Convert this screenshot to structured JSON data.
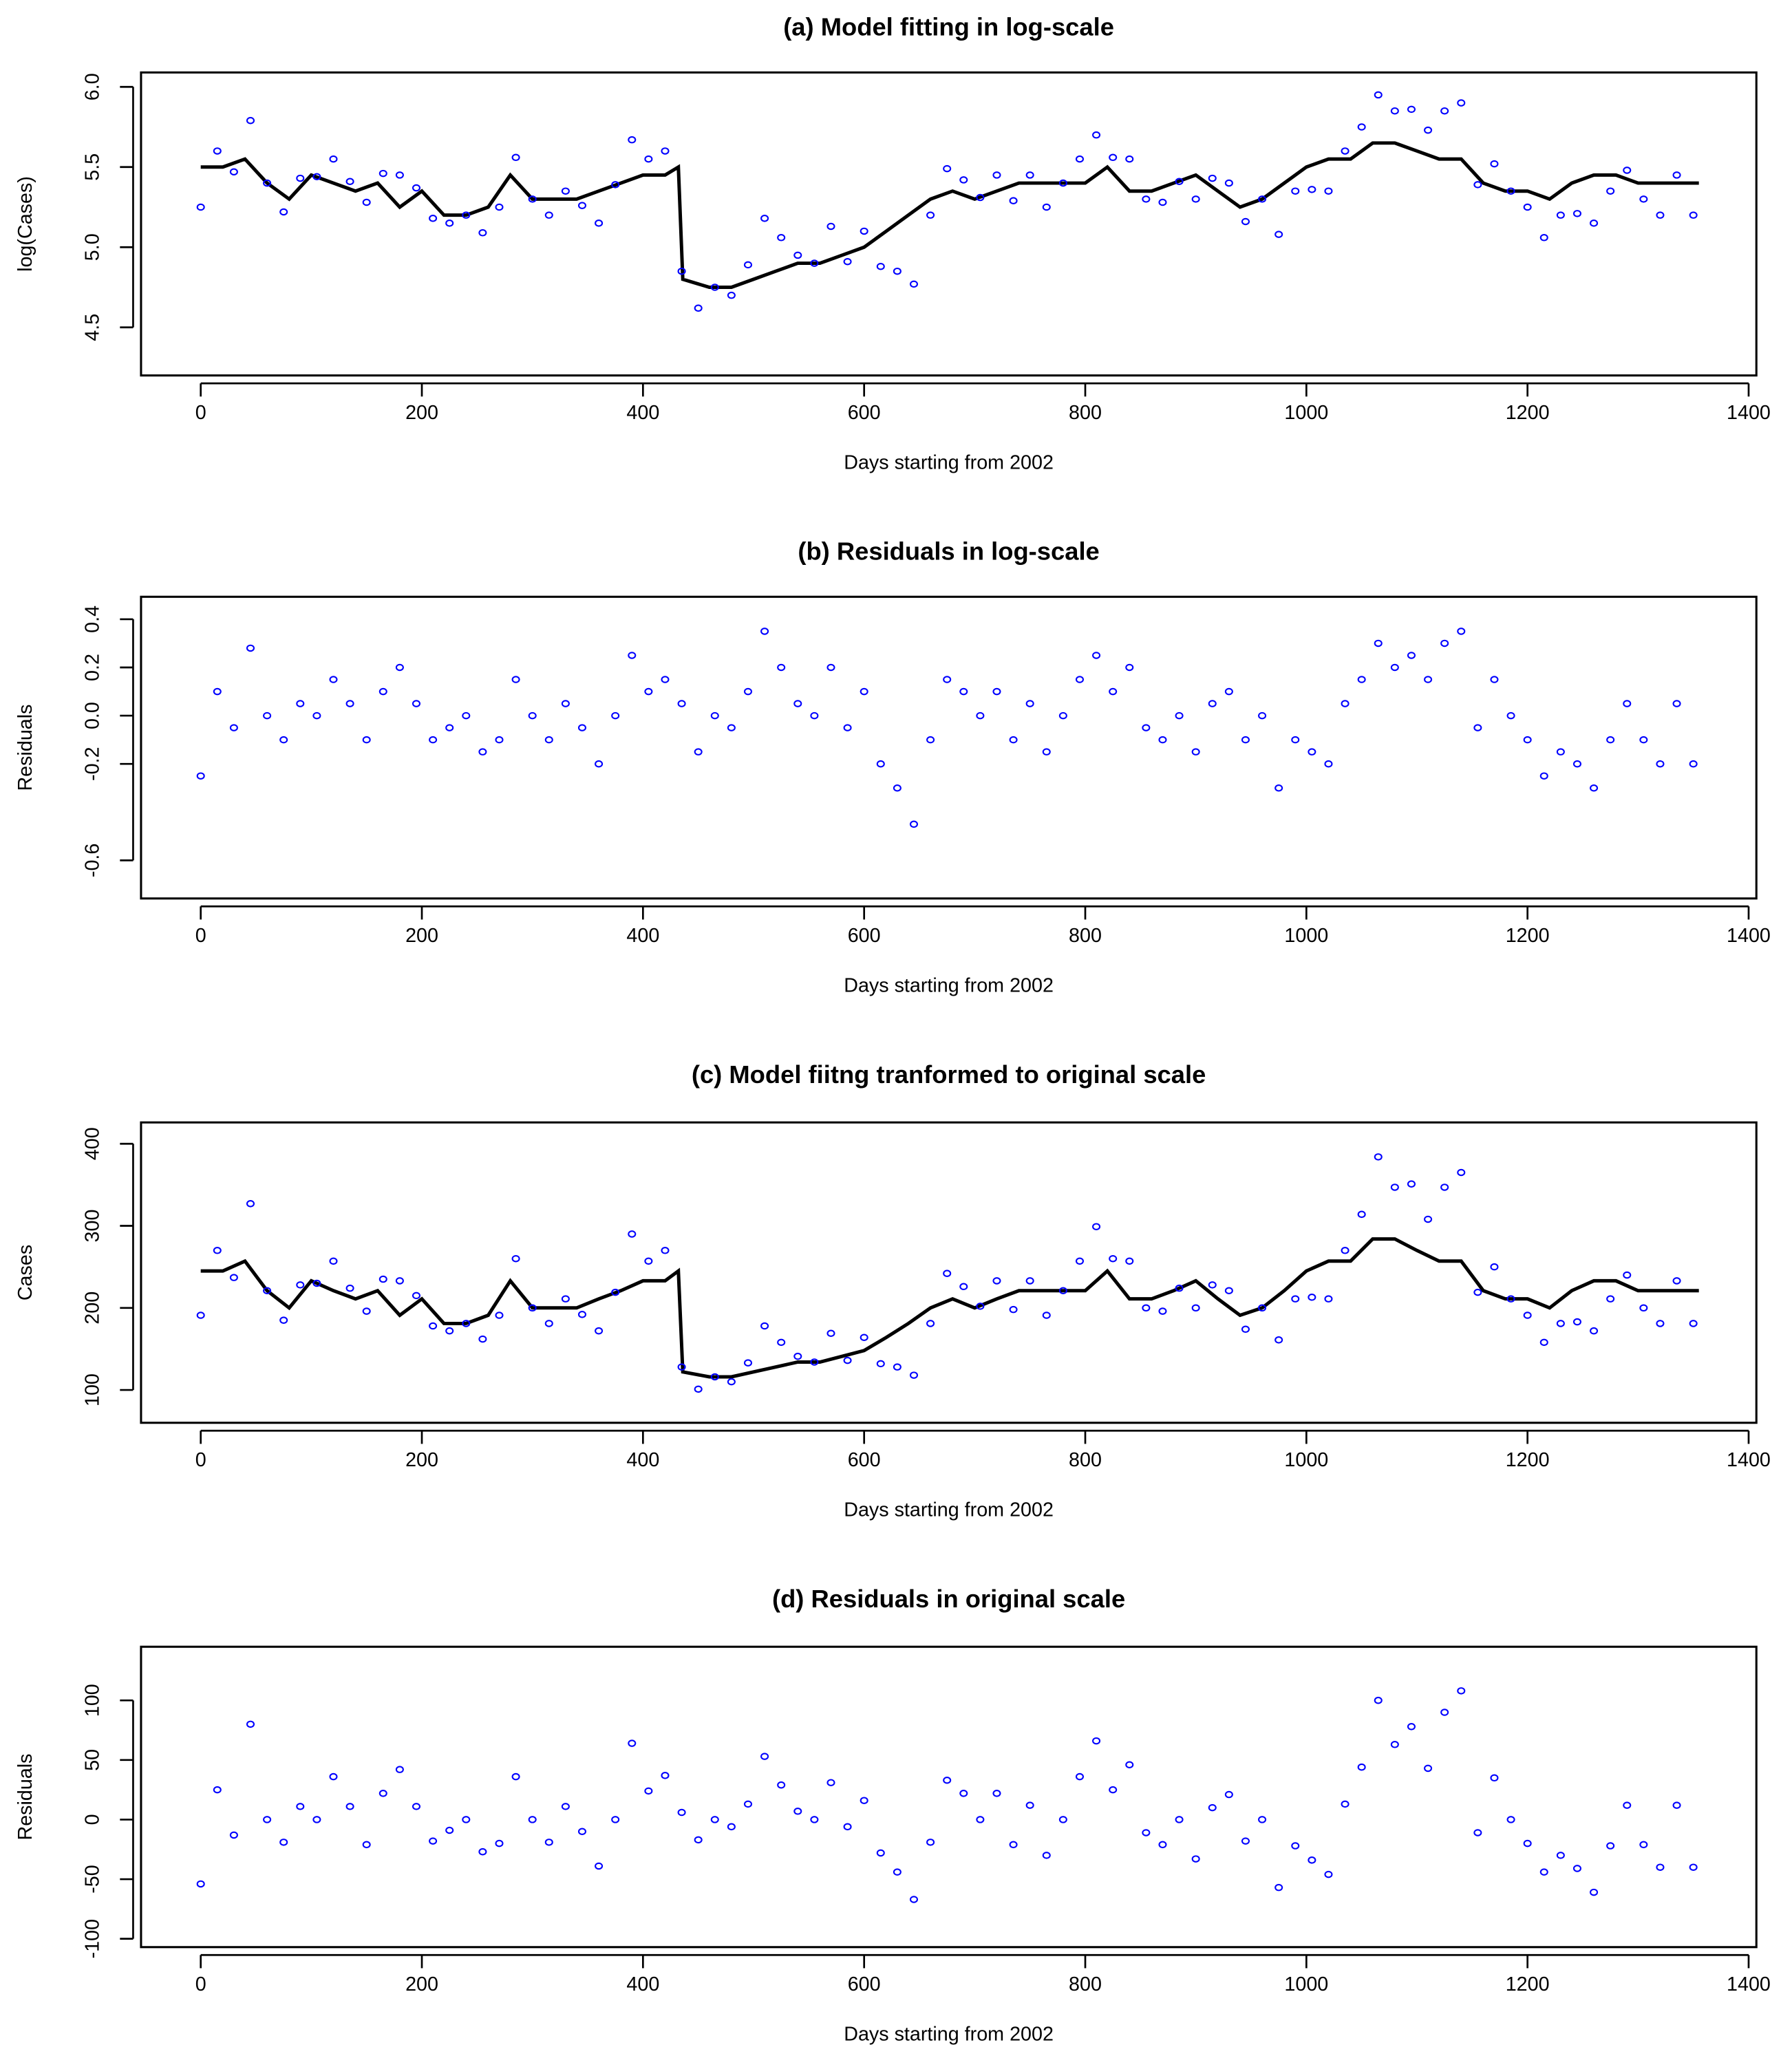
{
  "chart_data": [
    {
      "type": "scatter+line",
      "title": "(a) Model fitting in log-scale",
      "xlabel": "Days starting from 2002",
      "ylabel": "log(Cases)",
      "xlim": [
        -54,
        1407
      ],
      "ylim": [
        4.2,
        6.09
      ],
      "xticks": [
        0,
        200,
        400,
        600,
        800,
        1000,
        1200,
        1400
      ],
      "xtick_labels": [
        "0",
        "200",
        "400",
        "600",
        "800",
        "1000",
        "1200",
        "1400"
      ],
      "yticks": [
        4.5,
        5.0,
        5.5,
        6.0
      ],
      "ytick_labels": [
        "4.5",
        "5.0",
        "5.5",
        "6.0"
      ],
      "grid": false,
      "colors": {
        "points": "#0000ff",
        "line": "#000000"
      },
      "x": [
        0,
        15,
        30,
        45,
        60,
        75,
        90,
        105,
        120,
        135,
        150,
        165,
        180,
        195,
        210,
        225,
        240,
        255,
        270,
        285,
        300,
        315,
        330,
        345,
        360,
        375,
        390,
        405,
        420,
        435,
        450,
        465,
        480,
        495,
        510,
        525,
        540,
        555,
        570,
        585,
        600,
        615,
        630,
        645,
        660,
        675,
        690,
        705,
        720,
        735,
        750,
        765,
        780,
        795,
        810,
        825,
        840,
        855,
        870,
        885,
        900,
        915,
        930,
        945,
        960,
        975,
        990,
        1005,
        1020,
        1035,
        1050,
        1065,
        1080,
        1095,
        1110,
        1125,
        1140,
        1155,
        1170,
        1185,
        1200,
        1215,
        1230,
        1245,
        1260,
        1275,
        1290,
        1305,
        1320,
        1335,
        1350
      ],
      "observed": [
        5.25,
        5.6,
        5.47,
        5.79,
        5.4,
        5.22,
        5.43,
        5.44,
        5.55,
        5.41,
        5.28,
        5.46,
        5.45,
        5.37,
        5.18,
        5.15,
        5.2,
        5.09,
        5.25,
        5.56,
        5.3,
        5.2,
        5.35,
        5.26,
        5.15,
        5.39,
        5.67,
        5.55,
        5.6,
        4.85,
        4.62,
        4.75,
        4.7,
        4.89,
        5.18,
        5.06,
        4.95,
        4.9,
        5.13,
        4.91,
        5.1,
        4.88,
        4.85,
        4.77,
        5.2,
        5.49,
        5.42,
        5.31,
        5.45,
        5.29,
        5.45,
        5.25,
        5.4,
        5.55,
        5.7,
        5.56,
        5.55,
        5.3,
        5.28,
        5.41,
        5.3,
        5.43,
        5.4,
        5.16,
        5.3,
        5.08,
        5.35,
        5.36,
        5.35,
        5.6,
        5.75,
        5.95,
        5.85,
        5.86,
        5.73,
        5.85,
        5.9,
        5.39,
        5.52,
        5.35,
        5.25,
        5.06,
        5.2,
        5.21,
        5.15,
        5.35,
        5.48,
        5.3,
        5.2,
        5.45,
        5.2
      ],
      "fitted_x": [
        0,
        20,
        40,
        60,
        80,
        100,
        120,
        140,
        160,
        180,
        200,
        220,
        240,
        260,
        280,
        300,
        320,
        340,
        360,
        380,
        400,
        420,
        432,
        436,
        460,
        480,
        500,
        520,
        540,
        560,
        580,
        600,
        620,
        640,
        660,
        680,
        700,
        720,
        740,
        760,
        780,
        800,
        820,
        840,
        860,
        880,
        900,
        920,
        940,
        960,
        980,
        1000,
        1020,
        1040,
        1060,
        1080,
        1100,
        1120,
        1140,
        1160,
        1180,
        1200,
        1220,
        1240,
        1260,
        1280,
        1300,
        1320,
        1340,
        1355
      ],
      "fitted": [
        5.5,
        5.5,
        5.55,
        5.4,
        5.3,
        5.45,
        5.4,
        5.35,
        5.4,
        5.25,
        5.35,
        5.2,
        5.2,
        5.25,
        5.45,
        5.3,
        5.3,
        5.3,
        5.35,
        5.4,
        5.45,
        5.45,
        5.5,
        4.8,
        4.75,
        4.75,
        4.8,
        4.85,
        4.9,
        4.9,
        4.95,
        5.0,
        5.1,
        5.2,
        5.3,
        5.35,
        5.3,
        5.35,
        5.4,
        5.4,
        5.4,
        5.4,
        5.5,
        5.35,
        5.35,
        5.4,
        5.45,
        5.35,
        5.25,
        5.3,
        5.4,
        5.5,
        5.55,
        5.55,
        5.65,
        5.65,
        5.6,
        5.55,
        5.55,
        5.4,
        5.35,
        5.35,
        5.3,
        5.4,
        5.45,
        5.45,
        5.4,
        5.4,
        5.4,
        5.4
      ]
    },
    {
      "type": "scatter",
      "title": "(b) Residuals in log-scale",
      "xlabel": "Days starting from 2002",
      "ylabel": "Residuals",
      "xlim": [
        -54,
        1407
      ],
      "ylim": [
        -0.758,
        0.493
      ],
      "xticks": [
        0,
        200,
        400,
        600,
        800,
        1000,
        1200,
        1400
      ],
      "xtick_labels": [
        "0",
        "200",
        "400",
        "600",
        "800",
        "1000",
        "1200",
        "1400"
      ],
      "yticks": [
        -0.6,
        -0.2,
        0.0,
        0.2,
        0.4
      ],
      "ytick_labels": [
        "-0.6",
        "-0.2",
        "0.0",
        "0.2",
        "0.4"
      ],
      "grid": false,
      "colors": {
        "points": "#0000ff"
      },
      "x": [
        0,
        15,
        30,
        45,
        60,
        75,
        90,
        105,
        120,
        135,
        150,
        165,
        180,
        195,
        210,
        225,
        240,
        255,
        270,
        285,
        300,
        315,
        330,
        345,
        360,
        375,
        390,
        405,
        420,
        435,
        450,
        465,
        480,
        495,
        510,
        525,
        540,
        555,
        570,
        585,
        600,
        615,
        630,
        645,
        660,
        675,
        690,
        705,
        720,
        735,
        750,
        765,
        780,
        795,
        810,
        825,
        840,
        855,
        870,
        885,
        900,
        915,
        930,
        945,
        960,
        975,
        990,
        1005,
        1020,
        1035,
        1050,
        1065,
        1080,
        1095,
        1110,
        1125,
        1140,
        1155,
        1170,
        1185,
        1200,
        1215,
        1230,
        1245,
        1260,
        1275,
        1290,
        1305,
        1320,
        1335,
        1350
      ],
      "residuals": [
        -0.25,
        0.1,
        -0.05,
        0.28,
        0.0,
        -0.1,
        0.05,
        0.0,
        0.15,
        0.05,
        -0.1,
        0.1,
        0.2,
        0.05,
        -0.1,
        -0.05,
        0.0,
        -0.15,
        -0.1,
        0.15,
        0.0,
        -0.1,
        0.05,
        -0.05,
        -0.2,
        0.0,
        0.25,
        0.1,
        0.15,
        0.05,
        -0.15,
        0.0,
        -0.05,
        0.1,
        0.35,
        0.2,
        0.05,
        0.0,
        0.2,
        -0.05,
        0.1,
        -0.2,
        -0.3,
        -0.45,
        -0.1,
        0.15,
        0.1,
        0.0,
        0.1,
        -0.1,
        0.05,
        -0.15,
        0.0,
        0.15,
        0.25,
        0.1,
        0.2,
        -0.05,
        -0.1,
        0.0,
        -0.15,
        0.05,
        0.1,
        -0.1,
        0.0,
        -0.3,
        -0.1,
        -0.15,
        -0.2,
        0.05,
        0.15,
        0.3,
        0.2,
        0.25,
        0.15,
        0.3,
        0.35,
        -0.05,
        0.15,
        0.0,
        -0.1,
        -0.25,
        -0.15,
        -0.2,
        -0.3,
        -0.1,
        0.05,
        -0.1,
        -0.2,
        0.05,
        -0.2
      ]
    },
    {
      "type": "scatter+line",
      "title": "(c) Model fiitng tranformed to original scale",
      "xlabel": "Days starting from 2002",
      "ylabel": "Cases",
      "xlim": [
        -54,
        1407
      ],
      "ylim": [
        60,
        426
      ],
      "xticks": [
        0,
        200,
        400,
        600,
        800,
        1000,
        1200,
        1400
      ],
      "xtick_labels": [
        "0",
        "200",
        "400",
        "600",
        "800",
        "1000",
        "1200",
        "1400"
      ],
      "yticks": [
        100,
        200,
        300,
        400
      ],
      "ytick_labels": [
        "100",
        "200",
        "300",
        "400"
      ],
      "grid": false,
      "colors": {
        "points": "#0000ff",
        "line": "#000000"
      },
      "x": [
        0,
        15,
        30,
        45,
        60,
        75,
        90,
        105,
        120,
        135,
        150,
        165,
        180,
        195,
        210,
        225,
        240,
        255,
        270,
        285,
        300,
        315,
        330,
        345,
        360,
        375,
        390,
        405,
        420,
        435,
        450,
        465,
        480,
        495,
        510,
        525,
        540,
        555,
        570,
        585,
        600,
        615,
        630,
        645,
        660,
        675,
        690,
        705,
        720,
        735,
        750,
        765,
        780,
        795,
        810,
        825,
        840,
        855,
        870,
        885,
        900,
        915,
        930,
        945,
        960,
        975,
        990,
        1005,
        1020,
        1035,
        1050,
        1065,
        1080,
        1095,
        1110,
        1125,
        1140,
        1155,
        1170,
        1185,
        1200,
        1215,
        1230,
        1245,
        1260,
        1275,
        1290,
        1305,
        1320,
        1335,
        1350
      ],
      "observed": [
        191,
        270,
        237,
        327,
        221,
        185,
        228,
        230,
        257,
        224,
        196,
        235,
        233,
        215,
        178,
        172,
        181,
        162,
        191,
        260,
        200,
        181,
        211,
        192,
        172,
        219,
        290,
        257,
        270,
        128,
        101,
        116,
        110,
        133,
        178,
        158,
        141,
        134,
        169,
        136,
        164,
        132,
        128,
        118,
        181,
        242,
        226,
        202,
        233,
        198,
        233,
        191,
        221,
        257,
        299,
        260,
        257,
        200,
        196,
        224,
        200,
        228,
        221,
        174,
        200,
        161,
        211,
        213,
        211,
        270,
        314,
        384,
        347,
        351,
        308,
        347,
        365,
        219,
        250,
        211,
        191,
        158,
        181,
        183,
        172,
        211,
        240,
        200,
        181,
        233,
        181
      ],
      "fitted_x": [
        0,
        20,
        40,
        60,
        80,
        100,
        120,
        140,
        160,
        180,
        200,
        220,
        240,
        260,
        280,
        300,
        320,
        340,
        360,
        380,
        400,
        420,
        432,
        436,
        460,
        480,
        500,
        520,
        540,
        560,
        580,
        600,
        620,
        640,
        660,
        680,
        700,
        720,
        740,
        760,
        780,
        800,
        820,
        840,
        860,
        880,
        900,
        920,
        940,
        960,
        980,
        1000,
        1020,
        1040,
        1060,
        1080,
        1100,
        1120,
        1140,
        1160,
        1180,
        1200,
        1220,
        1240,
        1260,
        1280,
        1300,
        1320,
        1340,
        1355
      ],
      "fitted": [
        245,
        245,
        257,
        221,
        200,
        233,
        221,
        211,
        221,
        191,
        211,
        181,
        181,
        191,
        233,
        200,
        200,
        200,
        211,
        221,
        233,
        233,
        245,
        122,
        116,
        116,
        122,
        128,
        134,
        134,
        141,
        148,
        164,
        181,
        200,
        211,
        200,
        211,
        221,
        221,
        221,
        221,
        245,
        211,
        211,
        221,
        233,
        211,
        191,
        200,
        221,
        245,
        257,
        257,
        284,
        284,
        270,
        257,
        257,
        221,
        211,
        211,
        200,
        221,
        233,
        233,
        221,
        221,
        221,
        221
      ]
    },
    {
      "type": "scatter",
      "title": "(d) Residuals in original scale",
      "xlabel": "Days starting from 2002",
      "ylabel": "Residuals",
      "xlim": [
        -54,
        1407
      ],
      "ylim": [
        -107,
        145
      ],
      "xticks": [
        0,
        200,
        400,
        600,
        800,
        1000,
        1200,
        1400
      ],
      "xtick_labels": [
        "0",
        "200",
        "400",
        "600",
        "800",
        "1000",
        "1200",
        "1400"
      ],
      "yticks": [
        -100,
        -50,
        0,
        50,
        100
      ],
      "ytick_labels": [
        "-100",
        "-50",
        "0",
        "50",
        "100"
      ],
      "grid": false,
      "colors": {
        "points": "#0000ff"
      },
      "x": [
        0,
        15,
        30,
        45,
        60,
        75,
        90,
        105,
        120,
        135,
        150,
        165,
        180,
        195,
        210,
        225,
        240,
        255,
        270,
        285,
        300,
        315,
        330,
        345,
        360,
        375,
        390,
        405,
        420,
        435,
        450,
        465,
        480,
        495,
        510,
        525,
        540,
        555,
        570,
        585,
        600,
        615,
        630,
        645,
        660,
        675,
        690,
        705,
        720,
        735,
        750,
        765,
        780,
        795,
        810,
        825,
        840,
        855,
        870,
        885,
        900,
        915,
        930,
        945,
        960,
        975,
        990,
        1005,
        1020,
        1035,
        1050,
        1065,
        1080,
        1095,
        1110,
        1125,
        1140,
        1155,
        1170,
        1185,
        1200,
        1215,
        1230,
        1245,
        1260,
        1275,
        1290,
        1305,
        1320,
        1335,
        1350
      ],
      "residuals": [
        -54,
        25,
        -13,
        80,
        0,
        -19,
        11,
        0,
        36,
        11,
        -21,
        22,
        42,
        11,
        -18,
        -9,
        0,
        -27,
        -20,
        36,
        0,
        -19,
        11,
        -10,
        -39,
        0,
        64,
        24,
        37,
        6,
        -17,
        0,
        -6,
        13,
        53,
        29,
        7,
        0,
        31,
        -6,
        16,
        -28,
        -44,
        -67,
        -19,
        33,
        22,
        0,
        22,
        -21,
        12,
        -30,
        0,
        36,
        66,
        25,
        46,
        -11,
        -21,
        0,
        -33,
        10,
        21,
        -18,
        0,
        -57,
        -22,
        -34,
        -46,
        13,
        44,
        100,
        63,
        78,
        43,
        90,
        108,
        -11,
        35,
        0,
        -20,
        -44,
        -30,
        -41,
        -61,
        -22,
        12,
        -21,
        -40,
        12,
        -40
      ]
    }
  ]
}
